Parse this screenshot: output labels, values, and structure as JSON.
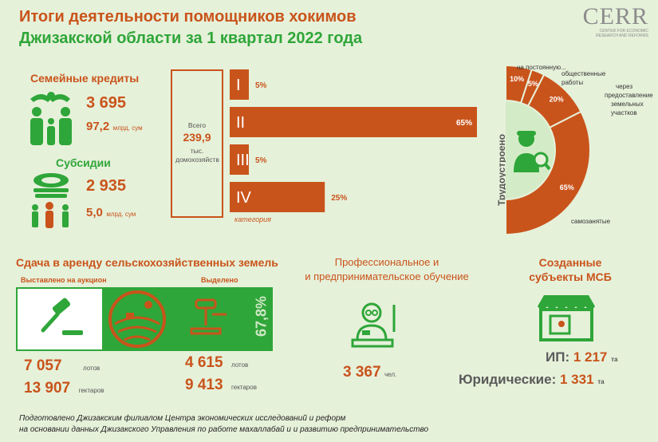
{
  "header": {
    "title_line1": "Итоги деятельности помощников хокимов",
    "title_line2": "Джизакской области  за 1 квартал 2022 года",
    "logo_text": "CERR",
    "logo_subtitle": "CENTER FOR ECONOMIC RESEARCH AND REFORMS"
  },
  "family_credits": {
    "title": "Семейные кредиты",
    "count": "3 695",
    "amount": "97,2",
    "amount_unit": "млрд. сум"
  },
  "subsidies": {
    "title": "Субсидии",
    "count": "2 935",
    "amount": "5,0",
    "amount_unit": "млрд. сум"
  },
  "households": {
    "total_label": "Всего",
    "total_value": "239,9",
    "total_unit": "тыс. домохозяйств",
    "category_label": "категория"
  },
  "employment": {
    "side_label": "Трудоустроено"
  },
  "land": {
    "title": "Сдача в аренду сельскохозяйственных земель",
    "auction_label": "Выставлено на аукцион",
    "allocated_label": "Выделено",
    "percent": "67,8%",
    "auction_lots": "7 057",
    "auction_hectares": "13 907",
    "allocated_lots": "4 615",
    "allocated_hectares": "9 413",
    "lots_unit": "лотов",
    "hectares_unit": "гектаров"
  },
  "training": {
    "title_line1": "Профессиональное и",
    "title_line2": "и предпринимательское обучение",
    "value": "3 367",
    "unit": "чел."
  },
  "sme": {
    "title_line1": "Созданные",
    "title_line2": "субъекты МСБ",
    "ip_label": "ИП:",
    "ip_value": "1 217",
    "ip_unit": "та",
    "legal_label": "Юридические:",
    "legal_value": "1 331",
    "legal_unit": "та"
  },
  "footer": {
    "line1": "Подготовлено Джизакским филиалом Центра экономических исследований и реформ",
    "line2": "на основании данных Джизакского Управления по работе махаллабай и и развитию предпринимательство"
  },
  "colors": {
    "orange": "#c9541b",
    "green": "#2fa639",
    "background": "#e6f1da"
  },
  "icons": [
    "family-icon",
    "hands-money-icon",
    "money-stack-icon",
    "children-icon",
    "gavel-icon",
    "field-icon",
    "worker-search-icon",
    "teacher-icon",
    "shop-icon"
  ],
  "chart_data": [
    {
      "type": "bar",
      "orientation": "horizontal",
      "categories": [
        "I",
        "II",
        "III",
        "IV"
      ],
      "values": [
        5,
        65,
        5,
        25
      ],
      "value_suffix": "%",
      "xlim": [
        0,
        100
      ]
    },
    {
      "type": "pie",
      "variant": "half-donut",
      "labels": [
        "на постоянную...",
        "общественные работы",
        "через предоставление земельных участков",
        "самозанятые"
      ],
      "values": [
        10,
        5,
        20,
        65
      ],
      "value_suffix": "%"
    }
  ]
}
